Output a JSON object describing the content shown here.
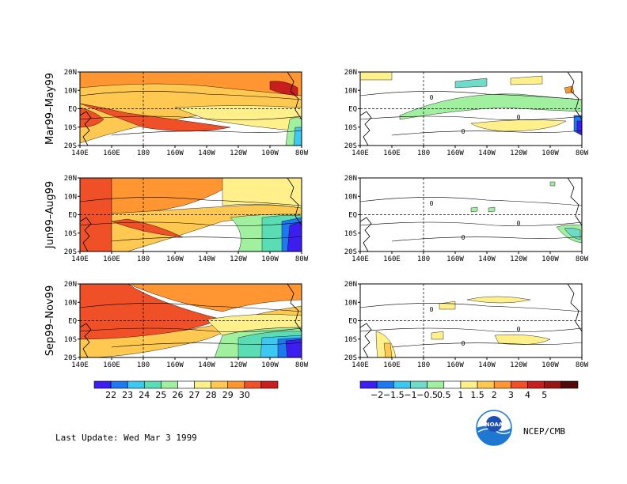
{
  "chart_data": {
    "type": "heatmap",
    "row_labels": [
      "Mar99–May99",
      "Jun99–Aug99",
      "Sep99–Nov99"
    ],
    "x_ticks": [
      "140E",
      "160E",
      "180",
      "160W",
      "140W",
      "120W",
      "100W",
      "80W"
    ],
    "y_ticks": [
      "20N",
      "10N",
      "EQ",
      "10S",
      "20S"
    ],
    "left_colorbar": {
      "labels": [
        "22",
        "23",
        "24",
        "25",
        "26",
        "27",
        "28",
        "29",
        "30"
      ],
      "colors": [
        "#3c1ef0",
        "#1e78f0",
        "#3cc8f0",
        "#5adcb4",
        "#a0f0a0",
        "#ffffff",
        "#fff08c",
        "#ffc850",
        "#ff9632",
        "#f05028",
        "#c81e1e"
      ]
    },
    "right_colorbar": {
      "labels": [
        "−2",
        "−1.5",
        "−1",
        "−0.5",
        "0.5",
        "1",
        "1.5",
        "2",
        "3",
        "4",
        "5"
      ],
      "colors": [
        "#3c1ef0",
        "#1e78f0",
        "#3cc8f0",
        "#6edcc8",
        "#a0f0a0",
        "#ffffff",
        "#fff08c",
        "#ffc850",
        "#ff9632",
        "#f05028",
        "#c81e1e",
        "#961414",
        "#500a0a"
      ]
    },
    "contour_label": "0"
  },
  "footer": {
    "last_update": "Last Update:  Wed Mar 3 1999",
    "credit": "NCEP/CMB",
    "logo_text": "NOAA"
  }
}
